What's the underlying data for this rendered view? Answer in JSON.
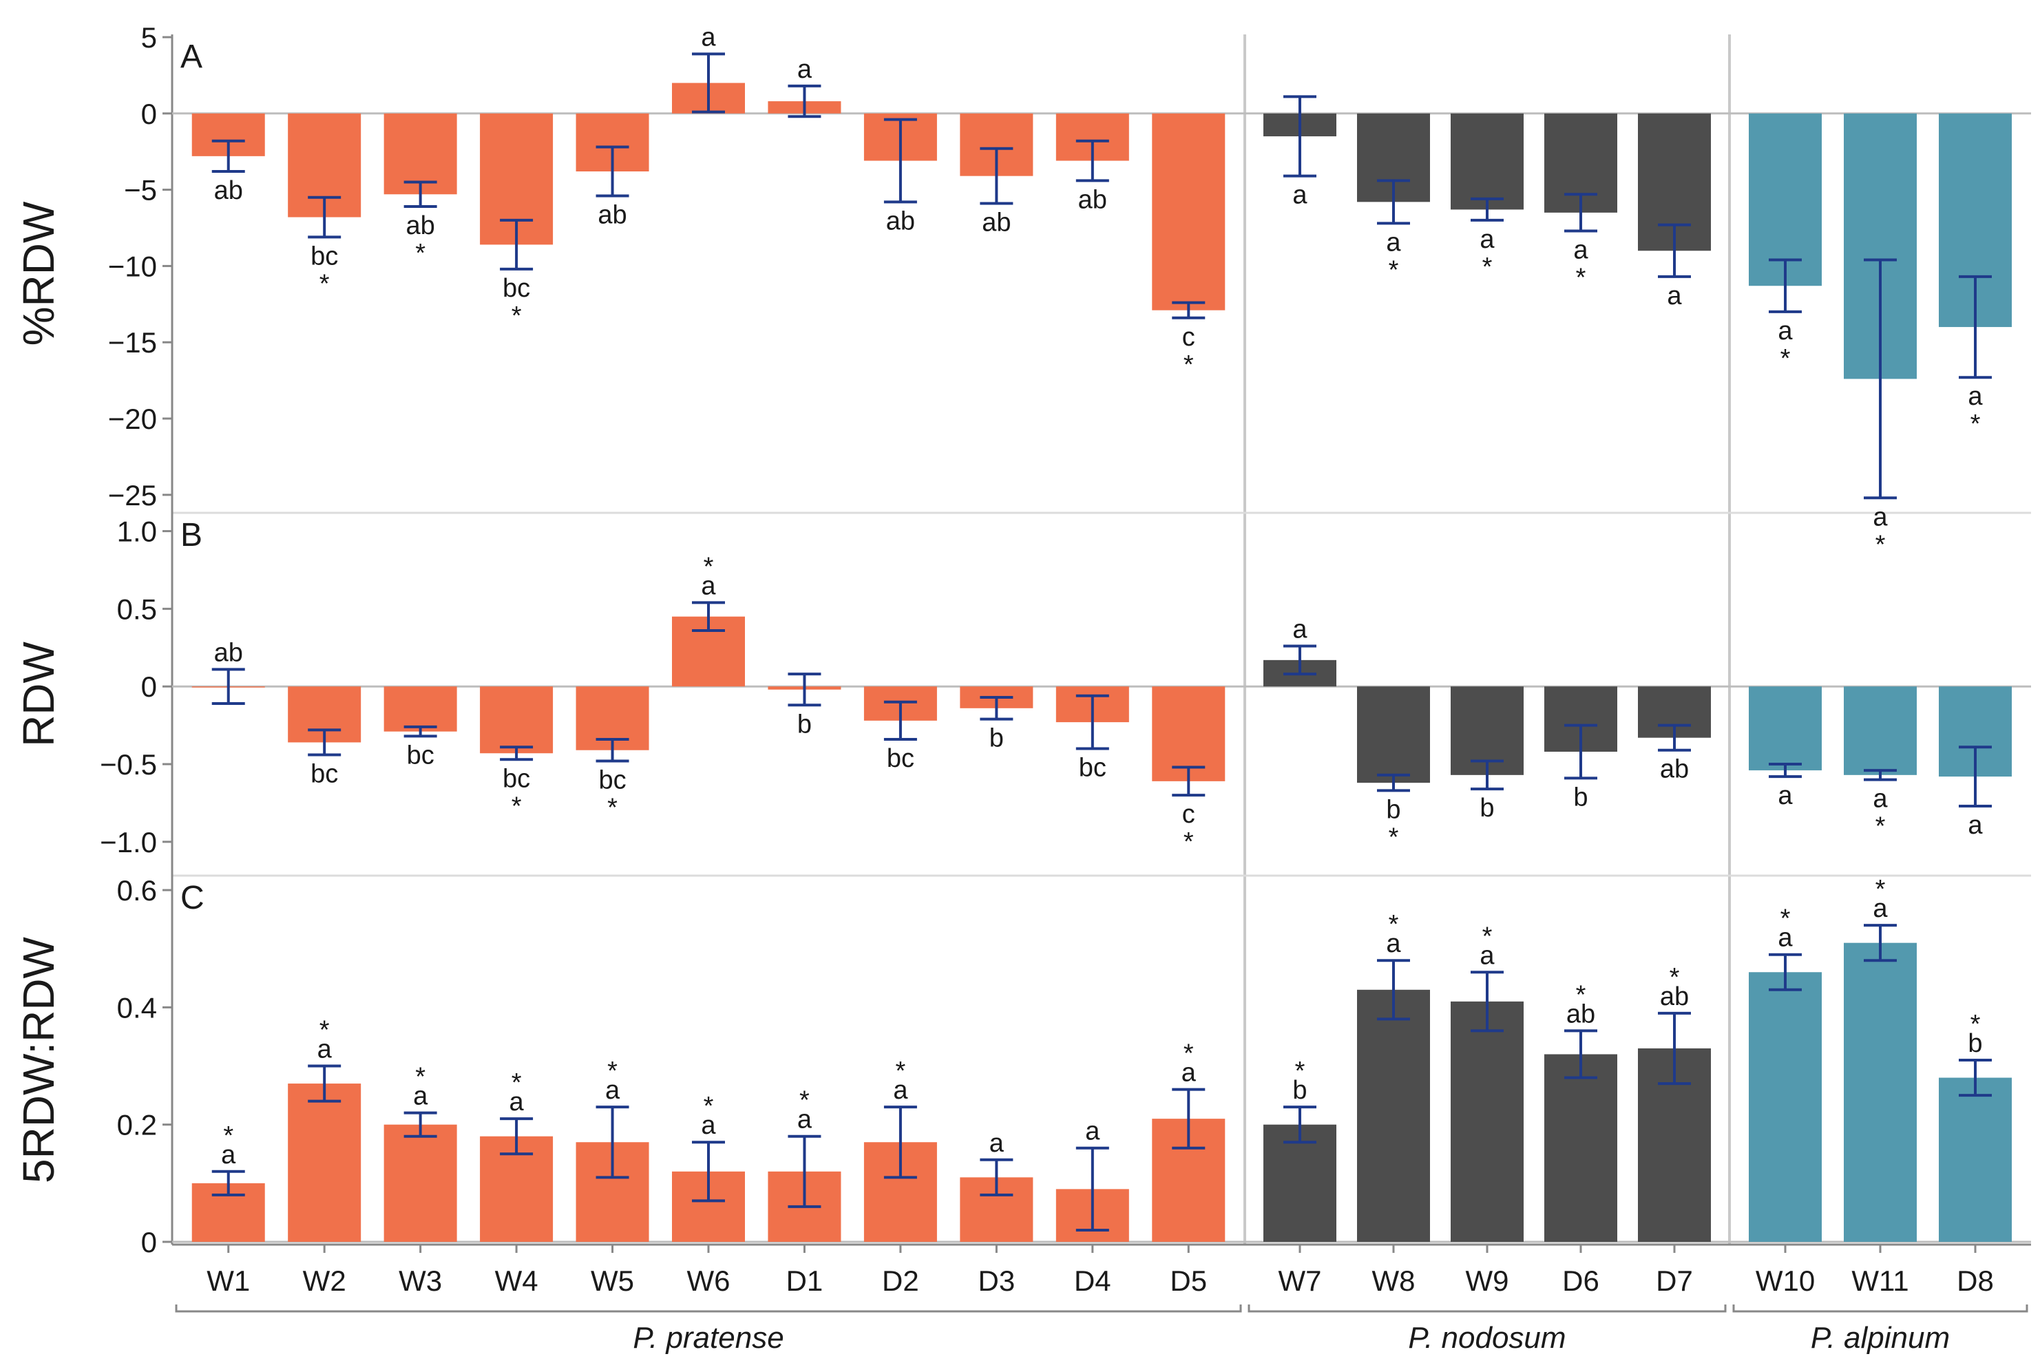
{
  "chart_data": {
    "type": "bar",
    "categories": [
      "W1",
      "W2",
      "W3",
      "W4",
      "W5",
      "W6",
      "D1",
      "D2",
      "D3",
      "D4",
      "D5",
      "W7",
      "W8",
      "W9",
      "D6",
      "D7",
      "W10",
      "W11",
      "D8"
    ],
    "groups": [
      {
        "name": "P. pratense",
        "categories": [
          "W1",
          "W2",
          "W3",
          "W4",
          "W5",
          "W6",
          "D1",
          "D2",
          "D3",
          "D4",
          "D5"
        ],
        "color": "#f0714b"
      },
      {
        "name": "P. nodosum",
        "categories": [
          "W7",
          "W8",
          "W9",
          "D6",
          "D7"
        ],
        "color": "#4d4d4d"
      },
      {
        "name": "P. alpinum",
        "categories": [
          "W10",
          "W11",
          "D8"
        ],
        "color": "#5399ae"
      }
    ],
    "error_bar_color": "#1f3a8a",
    "panels": [
      {
        "letter": "A",
        "ylabel": "%RDW",
        "ylim": [
          -26,
          5
        ],
        "yticks": [
          5,
          0,
          -5,
          -10,
          -15,
          -20,
          -25
        ],
        "ytick_labels": [
          "5",
          "0",
          "−5",
          "−10",
          "−15",
          "−20",
          "−25"
        ],
        "values": [
          -2.8,
          -6.8,
          -5.3,
          -8.6,
          -3.8,
          2.0,
          0.8,
          -3.1,
          -4.1,
          -3.1,
          -12.9,
          -1.5,
          -5.8,
          -6.3,
          -6.5,
          -9.0,
          -11.3,
          -17.4,
          -14.0
        ],
        "errors": [
          1.0,
          1.3,
          0.8,
          1.6,
          1.6,
          1.9,
          1.0,
          2.7,
          1.8,
          1.3,
          0.5,
          2.6,
          1.4,
          0.7,
          1.2,
          1.7,
          1.7,
          7.8,
          3.3
        ],
        "sig_letters": [
          "ab",
          "bc",
          "ab",
          "bc",
          "ab",
          "a",
          "a",
          "ab",
          "ab",
          "ab",
          "c",
          "a",
          "a",
          "a",
          "a",
          "a",
          "a",
          "a",
          "a"
        ],
        "stars": [
          false,
          true,
          true,
          true,
          false,
          false,
          false,
          false,
          false,
          false,
          true,
          false,
          true,
          true,
          true,
          false,
          true,
          true,
          true
        ]
      },
      {
        "letter": "B",
        "ylabel": "RDW",
        "ylim": [
          -1.2,
          1.1
        ],
        "yticks": [
          1.0,
          0.5,
          0,
          -0.5,
          -1.0
        ],
        "ytick_labels": [
          "1.0",
          "0.5",
          "0",
          "−0.5",
          "−1.0"
        ],
        "values": [
          0.0,
          -0.36,
          -0.29,
          -0.43,
          -0.41,
          0.45,
          -0.02,
          -0.22,
          -0.14,
          -0.23,
          -0.61,
          0.17,
          -0.62,
          -0.57,
          -0.42,
          -0.33,
          -0.54,
          -0.57,
          -0.58
        ],
        "errors": [
          0.11,
          0.08,
          0.03,
          0.04,
          0.07,
          0.09,
          0.1,
          0.12,
          0.07,
          0.17,
          0.09,
          0.09,
          0.05,
          0.09,
          0.17,
          0.08,
          0.04,
          0.03,
          0.19
        ],
        "sig_letters": [
          "ab",
          "bc",
          "bc",
          "bc",
          "bc",
          "a",
          "b",
          "bc",
          "b",
          "bc",
          "c",
          "a",
          "b",
          "b",
          "b",
          "ab",
          "a",
          "a",
          "a"
        ],
        "stars": [
          false,
          false,
          false,
          true,
          true,
          true,
          false,
          false,
          false,
          false,
          true,
          false,
          true,
          false,
          false,
          false,
          false,
          true,
          false
        ]
      },
      {
        "letter": "C",
        "ylabel": "5RDW:RDW",
        "ylim": [
          0,
          0.62
        ],
        "yticks": [
          0.6,
          0.4,
          0.2,
          0
        ],
        "ytick_labels": [
          "0.6",
          "0.4",
          "0.2",
          "0"
        ],
        "values": [
          0.1,
          0.27,
          0.2,
          0.18,
          0.17,
          0.12,
          0.12,
          0.17,
          0.11,
          0.09,
          0.21,
          0.2,
          0.43,
          0.41,
          0.32,
          0.33,
          0.46,
          0.51,
          0.28
        ],
        "errors": [
          0.02,
          0.03,
          0.02,
          0.03,
          0.06,
          0.05,
          0.06,
          0.06,
          0.03,
          0.07,
          0.05,
          0.03,
          0.05,
          0.05,
          0.04,
          0.06,
          0.03,
          0.03,
          0.03
        ],
        "sig_letters": [
          "a",
          "a",
          "a",
          "a",
          "a",
          "a",
          "a",
          "a",
          "a",
          "a",
          "a",
          "b",
          "a",
          "a",
          "ab",
          "ab",
          "a",
          "a",
          "b"
        ],
        "stars": [
          true,
          true,
          true,
          true,
          true,
          true,
          true,
          true,
          false,
          false,
          true,
          true,
          true,
          true,
          true,
          true,
          true,
          true,
          true
        ]
      }
    ]
  }
}
